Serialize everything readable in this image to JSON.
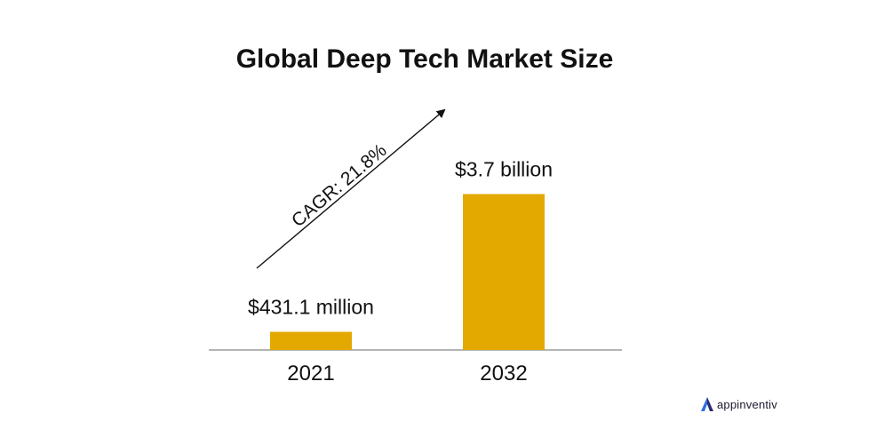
{
  "chart_data": {
    "type": "bar",
    "title": "Global Deep Tech Market Size",
    "categories": [
      "2021",
      "2032"
    ],
    "values": [
      0.4311,
      3.7
    ],
    "value_unit": "billion USD",
    "data_labels": [
      "$431.1 million",
      "$3.7 billion"
    ],
    "annotation": "CAGR: 21.8%",
    "ylim": [
      0,
      4.3
    ],
    "grid": false,
    "legend": "none",
    "colors": {
      "bar": "#E3A900",
      "axis": "#888888",
      "text": "#111111"
    }
  },
  "brand": {
    "logo_text": "appinventiv",
    "logo_colors": [
      "#2f6fe4",
      "#2a2a6e"
    ]
  }
}
